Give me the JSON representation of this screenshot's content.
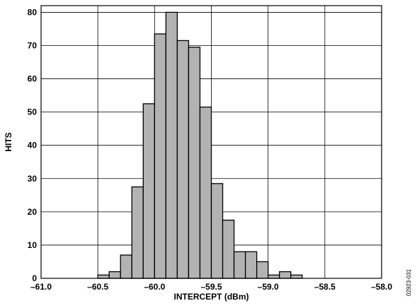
{
  "chart_data": {
    "type": "bar",
    "title": "",
    "xlabel": "INTERCEPT (dBm)",
    "ylabel": "HITS",
    "xlim": [
      -61.0,
      -58.0
    ],
    "ylim": [
      0,
      82
    ],
    "grid": true,
    "bin_width": 0.1,
    "x_tick_values": [
      -61.0,
      -60.5,
      -60.0,
      -59.5,
      -59.0,
      -58.5,
      -58.0
    ],
    "x_tick_labels": [
      "–61.0",
      "–60.5",
      "–60.0",
      "–59.5",
      "–59.0",
      "–58.5",
      "–58.0"
    ],
    "y_tick_values": [
      0,
      10,
      20,
      30,
      40,
      50,
      60,
      70,
      80
    ],
    "y_tick_labels": [
      "0",
      "10",
      "20",
      "30",
      "40",
      "50",
      "60",
      "70",
      "80"
    ],
    "bins": [
      {
        "x": -60.45,
        "value": 1
      },
      {
        "x": -60.35,
        "value": 2
      },
      {
        "x": -60.25,
        "value": 7
      },
      {
        "x": -60.15,
        "value": 27.5
      },
      {
        "x": -60.05,
        "value": 52.5
      },
      {
        "x": -59.95,
        "value": 73.5
      },
      {
        "x": -59.85,
        "value": 80
      },
      {
        "x": -59.75,
        "value": 71.5
      },
      {
        "x": -59.65,
        "value": 69.5
      },
      {
        "x": -59.55,
        "value": 51.5
      },
      {
        "x": -59.45,
        "value": 28.5
      },
      {
        "x": -59.35,
        "value": 17.5
      },
      {
        "x": -59.25,
        "value": 8
      },
      {
        "x": -59.15,
        "value": 8
      },
      {
        "x": -59.05,
        "value": 5
      },
      {
        "x": -58.95,
        "value": 1
      },
      {
        "x": -58.85,
        "value": 2
      },
      {
        "x": -58.75,
        "value": 1
      }
    ],
    "bar_color": "#b3b3b3",
    "annotations": [
      "02923-031"
    ]
  }
}
